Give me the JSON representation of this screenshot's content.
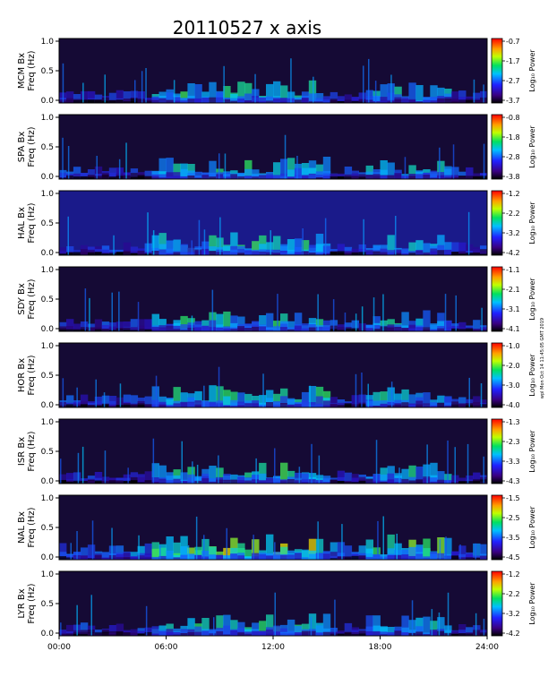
{
  "chart_data": {
    "type": "heatmap",
    "title": "20110527 x axis",
    "stamp": "wpl Mon Oct 14 11:45:05 GMT 2019",
    "x_ticks": [
      "00:00",
      "06:00",
      "12:00",
      "18:00",
      "24:00"
    ],
    "xlim_hours": [
      0,
      24
    ],
    "ylim_hz": [
      0.0,
      1.0
    ],
    "y_ticks": [
      "0.0",
      "0.5",
      "1.0"
    ],
    "freq_label": "Freq (Hz)",
    "colorbar_label": "Log₁₀ Power",
    "colormap": [
      "#000000",
      "#2a0050",
      "#3010c0",
      "#1060ff",
      "#00c8ff",
      "#20e060",
      "#ffff00",
      "#ff8000",
      "#ff0000"
    ],
    "panels": [
      {
        "station": "MCM Bx",
        "cbar": [
          "-0.7",
          "-1.7",
          "-2.7",
          "-3.7"
        ]
      },
      {
        "station": "SPA Bx",
        "cbar": [
          "-0.8",
          "-1.8",
          "-2.8",
          "-3.8"
        ]
      },
      {
        "station": "HAL Bx",
        "cbar": [
          "-1.2",
          "-2.2",
          "-3.2",
          "-4.2"
        ]
      },
      {
        "station": "SDY Bx",
        "cbar": [
          "-1.1",
          "-2.1",
          "-3.1",
          "-4.1"
        ]
      },
      {
        "station": "HOR Bx",
        "cbar": [
          "-1.0",
          "-2.0",
          "-3.0",
          "-4.0"
        ]
      },
      {
        "station": "ISR Bx",
        "cbar": [
          "-1.3",
          "-2.3",
          "-3.3",
          "-4.3"
        ]
      },
      {
        "station": "NAL Bx",
        "cbar": [
          "-1.5",
          "-2.5",
          "-3.5",
          "-4.5"
        ]
      },
      {
        "station": "LYR Bx",
        "cbar": [
          "-1.2",
          "-2.2",
          "-3.2",
          "-4.2"
        ]
      }
    ]
  }
}
